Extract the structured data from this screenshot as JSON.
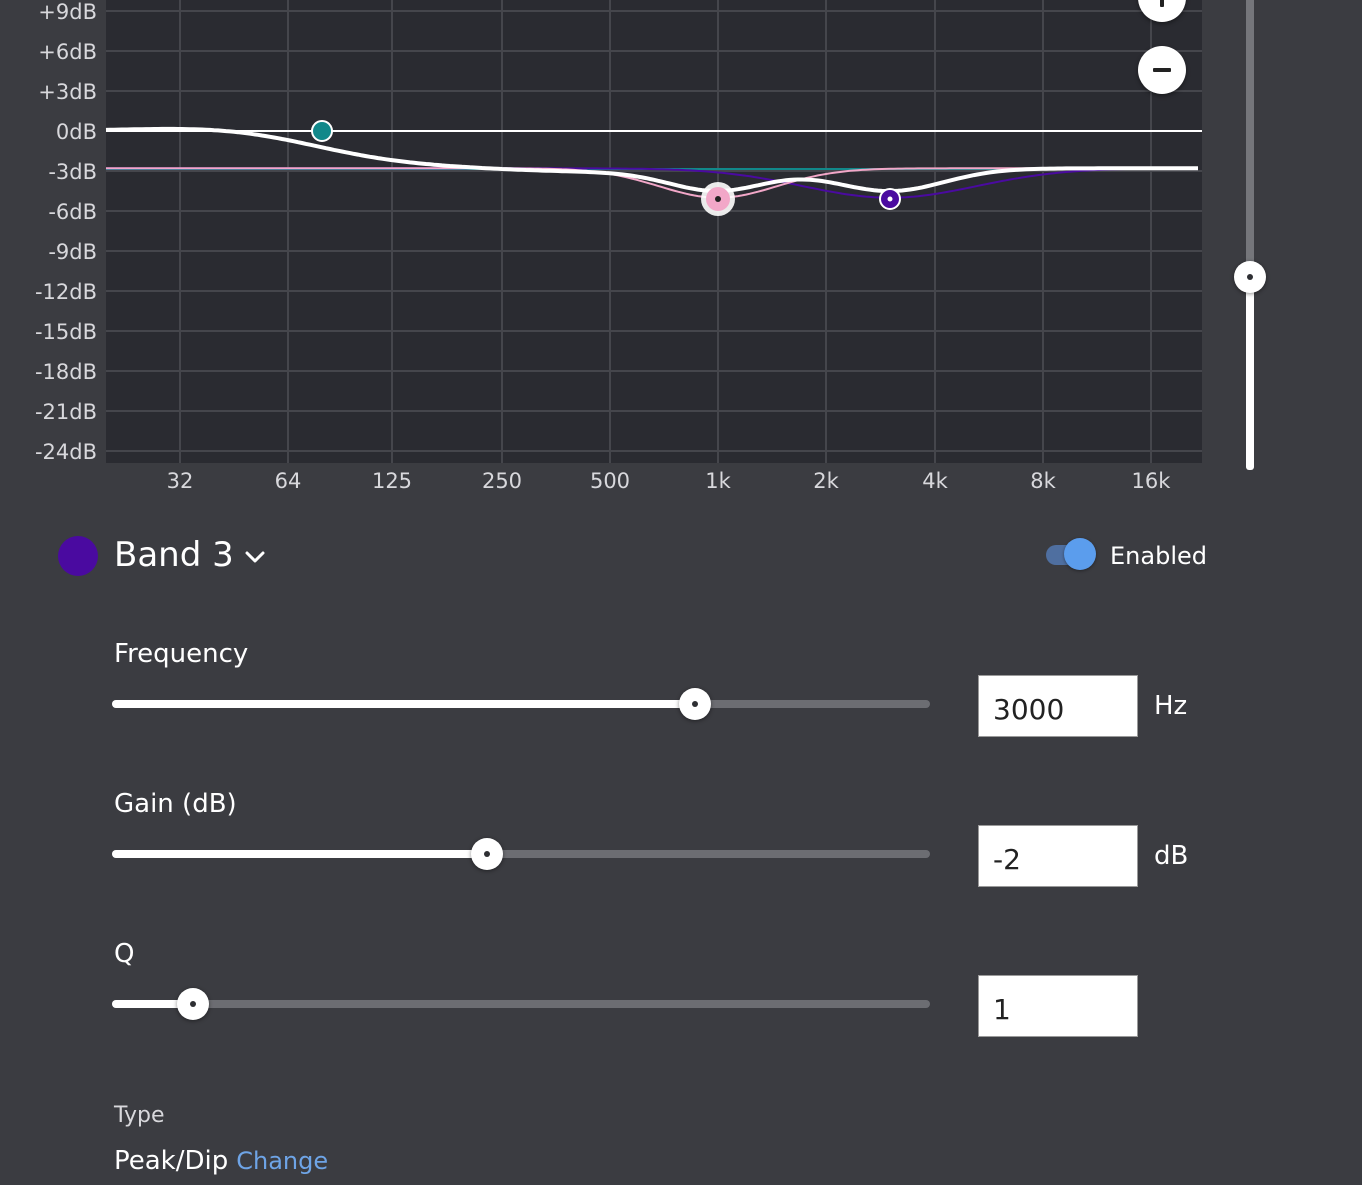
{
  "graph": {
    "db_labels": [
      "+9dB",
      "+6dB",
      "+3dB",
      "0dB",
      "-3dB",
      "-6dB",
      "-9dB",
      "-12dB",
      "-15dB",
      "-18dB",
      "-21dB",
      "-24dB"
    ],
    "freq_labels": [
      "32",
      "64",
      "125",
      "250",
      "500",
      "1k",
      "2k",
      "4k",
      "8k",
      "16k"
    ],
    "colors": {
      "background": "#2a2b31",
      "grid": "#45464c",
      "zero_line": "#ffffff",
      "response_curve": "#ffffff",
      "band1": "#11888a",
      "band2": "#f2a7c8",
      "band3": "#4a0aa0"
    }
  },
  "zoom": {
    "in_icon": "plus-icon",
    "out_icon": "minus-icon"
  },
  "band": {
    "title": "Band 3",
    "color": "#4a0aa0",
    "enabled_label": "Enabled",
    "enabled": true
  },
  "params": {
    "frequency": {
      "label": "Frequency",
      "value": "3000",
      "unit": "Hz",
      "level": 0.713
    },
    "gain": {
      "label": "Gain (dB)",
      "value": "-2",
      "unit": "dB",
      "level": 0.458
    },
    "q": {
      "label": "Q",
      "value": "1",
      "unit": "",
      "level": 0.099
    }
  },
  "type": {
    "caption": "Type",
    "value": "Peak/Dip",
    "change_label": "Change"
  },
  "output_level": 0.41
}
